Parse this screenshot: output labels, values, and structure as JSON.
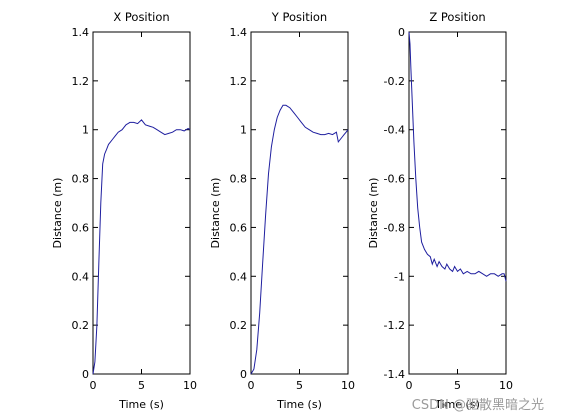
{
  "chart_data": [
    {
      "type": "line",
      "title": "X Position",
      "xlabel": "Time (s)",
      "ylabel": "Distance (m)",
      "xlim": [
        0,
        10
      ],
      "ylim": [
        0,
        1.4
      ],
      "xticks": [
        0,
        5,
        10
      ],
      "yticks": [
        0,
        0.2,
        0.4,
        0.6,
        0.8,
        1,
        1.2,
        1.4
      ],
      "xtick_labels": [
        "0",
        "5",
        "10"
      ],
      "ytick_labels": [
        "0",
        "0.2",
        "0.4",
        "0.6",
        "0.8",
        "1",
        "1.2",
        "1.4"
      ],
      "grid": false,
      "line_color": "#1f1f9f",
      "series": [
        {
          "x": [
            0,
            0.2,
            0.4,
            0.6,
            0.8,
            1.0,
            1.2,
            1.4,
            1.6,
            1.8,
            2.0,
            2.3,
            2.6,
            3.0,
            3.4,
            3.8,
            4.2,
            4.6,
            5.0,
            5.4,
            5.8,
            6.2,
            6.6,
            7.0,
            7.4,
            7.8,
            8.2,
            8.6,
            9.0,
            9.4,
            9.8,
            10.0
          ],
          "y": [
            0,
            0.05,
            0.2,
            0.45,
            0.7,
            0.86,
            0.9,
            0.92,
            0.94,
            0.95,
            0.96,
            0.975,
            0.99,
            1.0,
            1.02,
            1.03,
            1.03,
            1.025,
            1.04,
            1.02,
            1.015,
            1.01,
            1.0,
            0.99,
            0.98,
            0.985,
            0.99,
            1.0,
            1.0,
            0.995,
            1.005,
            1.0
          ]
        }
      ]
    },
    {
      "type": "line",
      "title": "Y Position",
      "xlabel": "Time (s)",
      "ylabel": "Distance (m)",
      "xlim": [
        0,
        10
      ],
      "ylim": [
        0,
        1.4
      ],
      "xticks": [
        0,
        5,
        10
      ],
      "yticks": [
        0,
        0.2,
        0.4,
        0.6,
        0.8,
        1,
        1.2,
        1.4
      ],
      "xtick_labels": [
        "0",
        "5",
        "10"
      ],
      "ytick_labels": [
        "0",
        "0.2",
        "0.4",
        "0.6",
        "0.8",
        "1",
        "1.2",
        "1.4"
      ],
      "grid": false,
      "line_color": "#1f1f9f",
      "series": [
        {
          "x": [
            0,
            0.3,
            0.6,
            0.9,
            1.2,
            1.5,
            1.8,
            2.1,
            2.4,
            2.7,
            3.0,
            3.3,
            3.6,
            4.0,
            4.4,
            4.8,
            5.2,
            5.6,
            6.0,
            6.4,
            6.8,
            7.2,
            7.6,
            8.0,
            8.4,
            8.8,
            9.0,
            9.2,
            9.4,
            9.6,
            9.8,
            10.0
          ],
          "y": [
            0,
            0.02,
            0.1,
            0.25,
            0.45,
            0.65,
            0.82,
            0.93,
            1.0,
            1.05,
            1.08,
            1.1,
            1.1,
            1.09,
            1.07,
            1.05,
            1.03,
            1.01,
            1.0,
            0.99,
            0.985,
            0.98,
            0.98,
            0.985,
            0.98,
            0.99,
            0.95,
            0.96,
            0.97,
            0.98,
            0.99,
            1.0
          ]
        }
      ]
    },
    {
      "type": "line",
      "title": "Z Position",
      "xlabel": "Time (s)",
      "ylabel": "Distance (m)",
      "xlim": [
        0,
        10
      ],
      "ylim": [
        -1.4,
        0
      ],
      "xticks": [
        0,
        5,
        10
      ],
      "yticks": [
        -1.4,
        -1.2,
        -1,
        -0.8,
        -0.6,
        -0.4,
        -0.2,
        0
      ],
      "xtick_labels": [
        "0",
        "5",
        "10"
      ],
      "ytick_labels": [
        "-1.4",
        "-1.2",
        "-1",
        "-0.8",
        "-0.6",
        "-0.4",
        "-0.2",
        "0"
      ],
      "grid": false,
      "line_color": "#1f1f9f",
      "series": [
        {
          "x": [
            0,
            0.1,
            0.2,
            0.35,
            0.5,
            0.7,
            0.9,
            1.1,
            1.3,
            1.6,
            1.9,
            2.2,
            2.4,
            2.6,
            2.9,
            3.1,
            3.4,
            3.7,
            3.9,
            4.2,
            4.5,
            4.7,
            5.0,
            5.3,
            5.6,
            6.0,
            6.4,
            6.8,
            7.2,
            7.6,
            8.0,
            8.4,
            8.8,
            9.2,
            9.6,
            9.8,
            10.0
          ],
          "y": [
            0,
            -0.05,
            -0.15,
            -0.3,
            -0.45,
            -0.6,
            -0.72,
            -0.8,
            -0.86,
            -0.89,
            -0.91,
            -0.92,
            -0.95,
            -0.93,
            -0.96,
            -0.94,
            -0.96,
            -0.97,
            -0.95,
            -0.97,
            -0.98,
            -0.96,
            -0.98,
            -0.97,
            -0.99,
            -0.98,
            -0.99,
            -0.99,
            -0.98,
            -0.99,
            -1.0,
            -0.99,
            -0.99,
            -1.0,
            -0.99,
            -0.99,
            -1.02
          ]
        }
      ]
    }
  ],
  "watermark": "CSDN @驱散黑暗之光"
}
